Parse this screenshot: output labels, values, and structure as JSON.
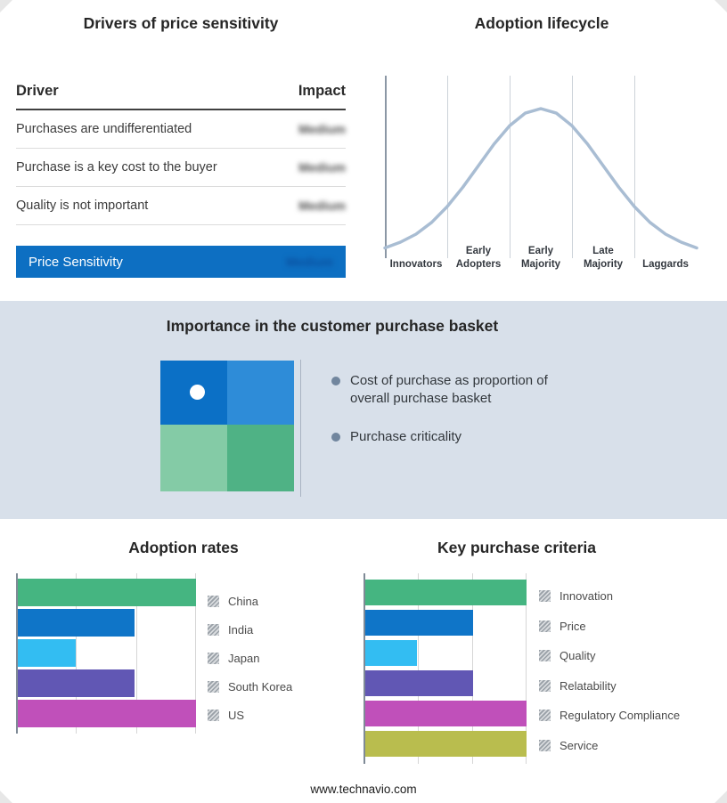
{
  "page": {
    "footer_link": "www.technavio.com",
    "band_color": "#d8e0ea",
    "accent_blue": "#0d6fc2"
  },
  "drivers": {
    "title": "Drivers of price sensitivity",
    "headers": {
      "driver": "Driver",
      "impact": "Impact"
    },
    "impact_values_blurred": true,
    "rows": [
      {
        "driver": "Purchases are undifferentiated",
        "impact": "Medium"
      },
      {
        "driver": "Purchase is a key cost to the buyer",
        "impact": "Medium"
      },
      {
        "driver": "Quality is not important",
        "impact": "Medium"
      }
    ],
    "summary": {
      "label": "Price Sensitivity",
      "impact": "Medium"
    }
  },
  "lifecycle": {
    "title": "Adoption lifecycle",
    "stages": [
      "Innovators",
      "Early Adopters",
      "Early Majority",
      "Late Majority",
      "Laggards"
    ]
  },
  "basket": {
    "title": "Importance in the customer purchase basket",
    "bullets": [
      "Cost of purchase as proportion of overall purchase basket",
      "Purchase criticality"
    ],
    "quadrant_colors": [
      "#0b70c6",
      "#2e8cd8",
      "#84cba6",
      "#4fb285"
    ],
    "dot_color": "#ffffff"
  },
  "chart_data": [
    {
      "id": "adoption_lifecycle",
      "type": "line",
      "title": "Adoption lifecycle",
      "x_categories": [
        "Innovators",
        "Early Adopters",
        "Early Majority",
        "Late Majority",
        "Laggards"
      ],
      "curve_shape": "bell",
      "points": [
        [
          0,
          0.04
        ],
        [
          5,
          0.08
        ],
        [
          10,
          0.135
        ],
        [
          15,
          0.216
        ],
        [
          20,
          0.325
        ],
        [
          25,
          0.458
        ],
        [
          30,
          0.607
        ],
        [
          35,
          0.755
        ],
        [
          40,
          0.882
        ],
        [
          45,
          0.969
        ],
        [
          50,
          1
        ],
        [
          55,
          0.969
        ],
        [
          60,
          0.882
        ],
        [
          65,
          0.755
        ],
        [
          70,
          0.607
        ],
        [
          75,
          0.458
        ],
        [
          80,
          0.325
        ],
        [
          85,
          0.216
        ],
        [
          90,
          0.135
        ],
        [
          95,
          0.08
        ],
        [
          100,
          0.04
        ]
      ],
      "ylim": [
        0,
        1
      ],
      "color": "#a9bdd3",
      "grid": "vertical stage dividers",
      "axis_value_labels": "none"
    },
    {
      "id": "adoption_rates",
      "type": "bar",
      "orientation": "horizontal",
      "title": "Adoption rates",
      "categories": [
        "China",
        "India",
        "Japan",
        "South Korea",
        "US"
      ],
      "values": [
        100,
        66,
        33,
        66,
        100
      ],
      "xlim": [
        0,
        100
      ],
      "colors": [
        "#45b581",
        "#0f75c8",
        "#33bdf2",
        "#6157b4",
        "#c050ba"
      ],
      "grid": true,
      "legend_position": "right",
      "axis_value_labels": "none"
    },
    {
      "id": "key_purchase_criteria",
      "type": "bar",
      "orientation": "horizontal",
      "title": "Key purchase criteria",
      "categories": [
        "Innovation",
        "Price",
        "Quality",
        "Relatability",
        "Regulatory Compliance",
        "Service"
      ],
      "values": [
        100,
        67,
        33,
        67,
        100,
        100
      ],
      "xlim": [
        0,
        100
      ],
      "colors": [
        "#45b581",
        "#0f75c8",
        "#33bdf2",
        "#6157b4",
        "#c050ba",
        "#b9bd4e"
      ],
      "grid": true,
      "legend_position": "right",
      "axis_value_labels": "none"
    }
  ]
}
